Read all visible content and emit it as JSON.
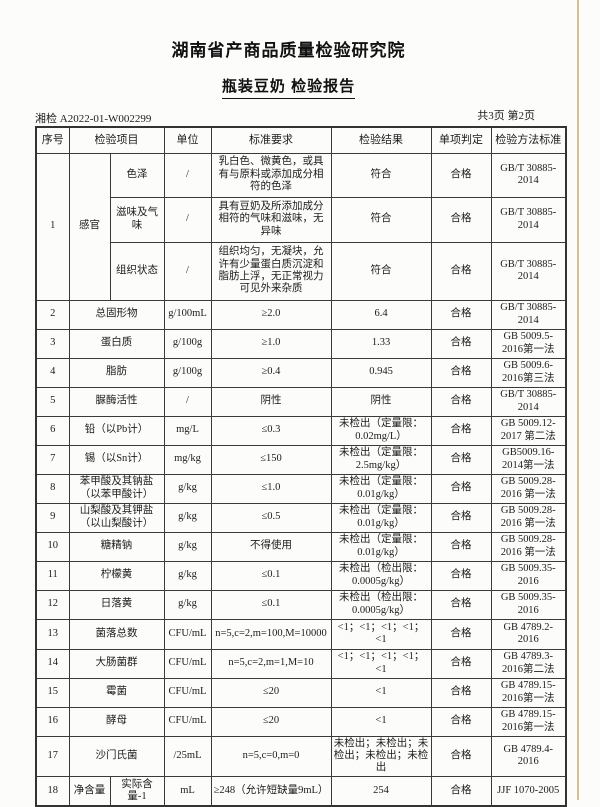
{
  "header": {
    "org_title": "湖南省产商品质量检验研究院",
    "report_title": "瓶装豆奶 检验报告",
    "report_no": "湘检 A2022-01-W002299",
    "page_info": "共3页 第2页"
  },
  "table": {
    "headers": [
      "序号",
      "检验项目",
      "单位",
      "标准要求",
      "检验结果",
      "单项判定",
      "检验方法标准"
    ],
    "rows": [
      {
        "seq": "1",
        "item": "感官",
        "subrows": [
          {
            "sub": "色泽",
            "unit": "/",
            "standard": "乳白色、微黄色，或具有与原料或添加成分相符的色泽",
            "result": "符合",
            "verdict": "合格",
            "method": "GB/T 30885-2014"
          },
          {
            "sub": "滋味及气味",
            "unit": "/",
            "standard": "具有豆奶及所添加成分相符的气味和滋味，无异味",
            "result": "符合",
            "verdict": "合格",
            "method": "GB/T 30885-2014"
          },
          {
            "sub": "组织状态",
            "unit": "/",
            "standard": "组织均匀，无凝块，允许有少量蛋白质沉淀和脂肪上浮，无正常视力可见外来杂质",
            "result": "符合",
            "verdict": "合格",
            "method": "GB/T 30885-2014"
          }
        ]
      },
      {
        "seq": "2",
        "item": "总固形物",
        "unit": "g/100mL",
        "standard": "≥2.0",
        "result": "6.4",
        "verdict": "合格",
        "method": "GB/T 30885-2014"
      },
      {
        "seq": "3",
        "item": "蛋白质",
        "unit": "g/100g",
        "standard": "≥1.0",
        "result": "1.33",
        "verdict": "合格",
        "method": "GB 5009.5-2016第一法"
      },
      {
        "seq": "4",
        "item": "脂肪",
        "unit": "g/100g",
        "standard": "≥0.4",
        "result": "0.945",
        "verdict": "合格",
        "method": "GB 5009.6-2016第三法"
      },
      {
        "seq": "5",
        "item": "脲酶活性",
        "unit": "/",
        "standard": "阴性",
        "result": "阴性",
        "verdict": "合格",
        "method": "GB/T 30885-2014"
      },
      {
        "seq": "6",
        "item": "铅（以Pb计）",
        "unit": "mg/L",
        "standard": "≤0.3",
        "result": "未检出（定量限：0.02mg/L）",
        "verdict": "合格",
        "method": "GB 5009.12-2017 第二法"
      },
      {
        "seq": "7",
        "item": "锡（以Sn计）",
        "unit": "mg/kg",
        "standard": "≤150",
        "result": "未检出（定量限：2.5mg/kg）",
        "verdict": "合格",
        "method": "GB5009.16-2014第一法"
      },
      {
        "seq": "8",
        "item": "苯甲酸及其钠盐（以苯甲酸计）",
        "unit": "g/kg",
        "standard": "≤1.0",
        "result": "未检出（定量限：0.01g/kg）",
        "verdict": "合格",
        "method": "GB 5009.28-2016 第一法"
      },
      {
        "seq": "9",
        "item": "山梨酸及其钾盐（以山梨酸计）",
        "unit": "g/kg",
        "standard": "≤0.5",
        "result": "未检出（定量限：0.01g/kg）",
        "verdict": "合格",
        "method": "GB 5009.28-2016 第一法"
      },
      {
        "seq": "10",
        "item": "糖精钠",
        "unit": "g/kg",
        "standard": "不得使用",
        "result": "未检出（定量限：0.01g/kg）",
        "verdict": "合格",
        "method": "GB 5009.28-2016 第一法"
      },
      {
        "seq": "11",
        "item": "柠檬黄",
        "unit": "g/kg",
        "standard": "≤0.1",
        "result": "未检出（检出限：0.0005g/kg）",
        "verdict": "合格",
        "method": "GB 5009.35-2016"
      },
      {
        "seq": "12",
        "item": "日落黄",
        "unit": "g/kg",
        "standard": "≤0.1",
        "result": "未检出（检出限：0.0005g/kg）",
        "verdict": "合格",
        "method": "GB 5009.35-2016"
      },
      {
        "seq": "13",
        "item": "菌落总数",
        "unit": "CFU/mL",
        "standard": "n=5,c=2,m=100,M=10000",
        "result": "<1；<1；<1；<1；<1",
        "verdict": "合格",
        "method": "GB 4789.2-2016"
      },
      {
        "seq": "14",
        "item": "大肠菌群",
        "unit": "CFU/mL",
        "standard": "n=5,c=2,m=1,M=10",
        "result": "<1；<1；<1；<1；<1",
        "verdict": "合格",
        "method": "GB 4789.3-2016第二法"
      },
      {
        "seq": "15",
        "item": "霉菌",
        "unit": "CFU/mL",
        "standard": "≤20",
        "result": "<1",
        "verdict": "合格",
        "method": "GB 4789.15-2016第一法"
      },
      {
        "seq": "16",
        "item": "酵母",
        "unit": "CFU/mL",
        "standard": "≤20",
        "result": "<1",
        "verdict": "合格",
        "method": "GB 4789.15-2016第一法"
      },
      {
        "seq": "17",
        "item": "沙门氏菌",
        "unit": "/25mL",
        "standard": "n=5,c=0,m=0",
        "result": "未检出；未检出；未检出；未检出；未检出",
        "verdict": "合格",
        "method": "GB 4789.4-2016"
      },
      {
        "seq": "18",
        "item": "净含量",
        "sub": "实际含量-1",
        "unit": "mL",
        "standard": "≥248（允许短缺量9mL）",
        "result": "254",
        "verdict": "合格",
        "method": "JJF 1070-2005"
      }
    ]
  }
}
